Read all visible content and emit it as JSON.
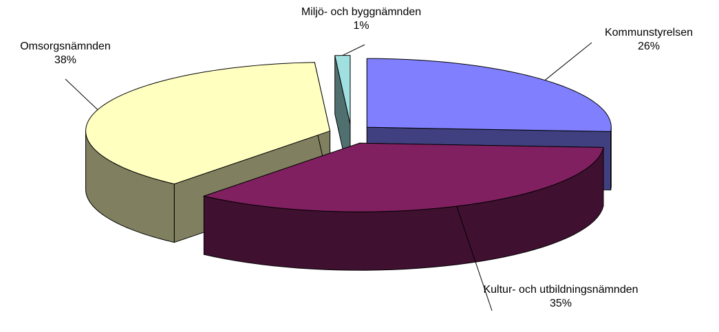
{
  "chart_data": {
    "type": "pie",
    "categories": [
      "Kommunstyrelsen",
      "Kultur- och utbildningsnämnden",
      "Omsorgsnämnden",
      "Miljö- och byggnämnden"
    ],
    "values": [
      26,
      35,
      38,
      1
    ],
    "value_labels": [
      "26%",
      "35%",
      "38%",
      "1%"
    ],
    "colors": [
      "#8080ff",
      "#802060",
      "#ffffc0",
      "#a0e0e0"
    ]
  }
}
